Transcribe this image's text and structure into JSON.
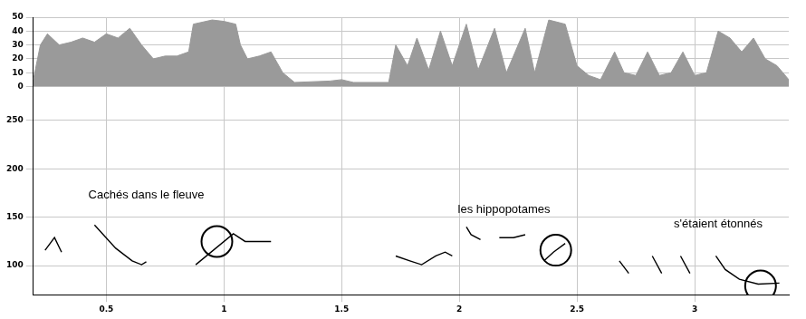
{
  "chart_data": {
    "type": "line",
    "xlim": [
      0.19,
      3.4
    ],
    "xticks": [
      0.5,
      1,
      1.5,
      2,
      2.5,
      3
    ],
    "ylim": [
      0,
      50
    ],
    "yticks": [
      0,
      10,
      20,
      30,
      40,
      50
    ],
    "y2lim": [
      70,
      285
    ],
    "y2ticks": [
      100,
      150,
      200,
      250
    ],
    "grid": true,
    "annotations": [
      {
        "text": "Cachés dans le fleuve",
        "x": 0.67,
        "y": 173,
        "axis": "y2"
      },
      {
        "text": "les hippopotames",
        "x": 2.19,
        "y": 158,
        "axis": "y2"
      },
      {
        "text": "s'étaient étonnés",
        "x": 3.1,
        "y": 143,
        "axis": "y2"
      }
    ],
    "series": [
      {
        "type": "area",
        "color": "#9a9a9a",
        "axis": "y",
        "x": [
          0.19,
          0.22,
          0.25,
          0.3,
          0.35,
          0.4,
          0.45,
          0.5,
          0.55,
          0.6,
          0.65,
          0.7,
          0.75,
          0.8,
          0.85,
          0.87,
          0.95,
          1.0,
          1.05,
          1.07,
          1.1,
          1.15,
          1.2,
          1.25,
          1.3,
          1.45,
          1.5,
          1.55,
          1.7,
          1.73,
          1.78,
          1.82,
          1.87,
          1.92,
          1.97,
          2.03,
          2.08,
          2.15,
          2.2,
          2.28,
          2.32,
          2.38,
          2.45,
          2.5,
          2.55,
          2.6,
          2.66,
          2.7,
          2.75,
          2.8,
          2.85,
          2.9,
          2.95,
          3.0,
          3.05,
          3.1,
          3.15,
          3.2,
          3.25,
          3.3,
          3.35,
          3.4
        ],
        "values": [
          5,
          30,
          38,
          30,
          32,
          35,
          32,
          38,
          35,
          42,
          30,
          20,
          22,
          22,
          25,
          45,
          48,
          47,
          45,
          30,
          20,
          22,
          25,
          10,
          3,
          4,
          5,
          3,
          3,
          30,
          15,
          35,
          12,
          40,
          15,
          45,
          12,
          42,
          10,
          42,
          10,
          48,
          45,
          15,
          8,
          5,
          25,
          10,
          8,
          25,
          8,
          10,
          25,
          8,
          10,
          40,
          35,
          25,
          35,
          20,
          15,
          5
        ]
      },
      {
        "type": "line",
        "color": "#000000",
        "axis": "y2",
        "x": [
          0.24,
          0.28,
          0.31,
          0.38,
          0.45,
          0.54,
          0.61,
          0.65,
          0.67,
          0.78,
          0.88,
          1.04,
          1.09,
          1.14,
          1.2,
          1.5,
          1.73,
          1.79,
          1.84,
          1.9,
          1.94,
          1.97,
          2.0,
          2.03,
          2.05,
          2.09,
          2.13,
          2.17,
          2.23,
          2.28,
          2.32,
          2.36,
          2.4,
          2.45,
          2.56,
          2.68,
          2.72,
          2.77,
          2.82,
          2.86,
          2.9,
          2.94,
          2.98,
          3.03,
          3.09,
          3.13,
          3.19,
          3.27,
          3.36
        ],
        "values": [
          116,
          129,
          114,
          null,
          142,
          118,
          105,
          101,
          104,
          null,
          101,
          133,
          125,
          125,
          125,
          null,
          110,
          105,
          101,
          110,
          114,
          110,
          null,
          140,
          132,
          127,
          null,
          129,
          129,
          132,
          null,
          105,
          114,
          123,
          null,
          105,
          92,
          null,
          110,
          92,
          null,
          110,
          92,
          null,
          110,
          96,
          86,
          81,
          82
        ]
      },
      {
        "type": "scatter",
        "marker": "circle",
        "color": "#000000",
        "axis": "y2",
        "x": [
          0.97,
          2.41,
          3.28
        ],
        "values": [
          125,
          116,
          79
        ]
      }
    ]
  }
}
